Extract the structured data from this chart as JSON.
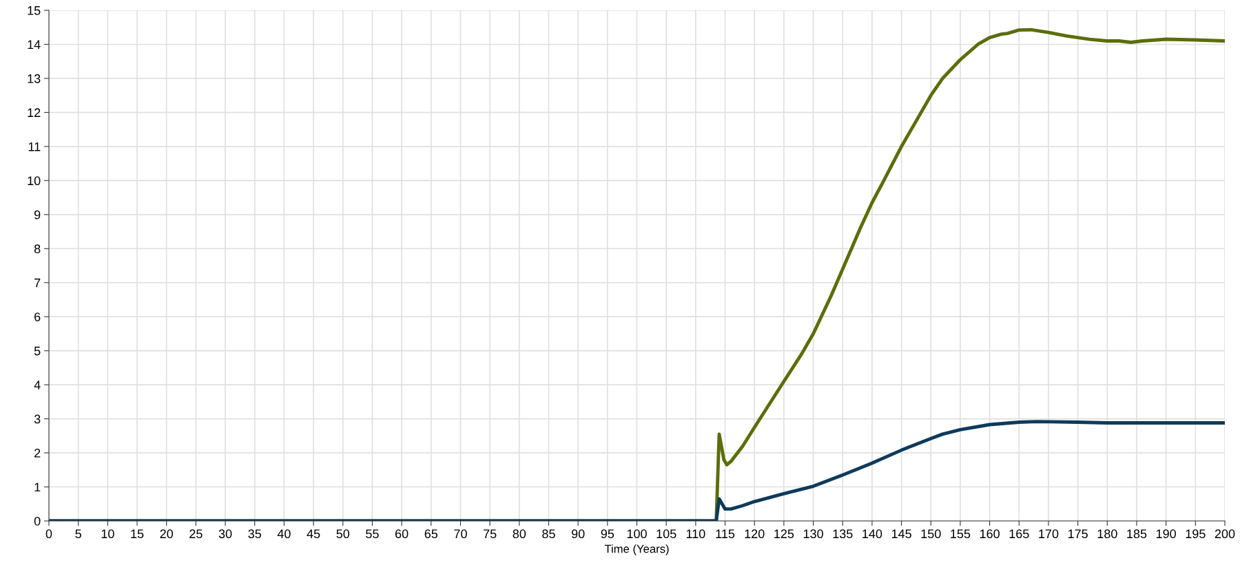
{
  "chart_data": {
    "type": "line",
    "xlabel": "Time (Years)",
    "xlim": [
      0,
      200
    ],
    "xticks": [
      0,
      5,
      10,
      15,
      20,
      25,
      30,
      35,
      40,
      45,
      50,
      55,
      60,
      65,
      70,
      75,
      80,
      85,
      90,
      95,
      100,
      105,
      110,
      115,
      120,
      125,
      130,
      135,
      140,
      145,
      150,
      155,
      160,
      165,
      170,
      175,
      180,
      185,
      190,
      195,
      200
    ],
    "ylim": [
      0,
      15
    ],
    "yticks": [
      0,
      1,
      2,
      3,
      4,
      5,
      6,
      7,
      8,
      9,
      10,
      11,
      12,
      13,
      14,
      15
    ],
    "grid": true,
    "legend": false,
    "marker": "none",
    "line_style": "solid",
    "series": [
      {
        "color": "#5a6e0a",
        "x": [
          0,
          113.5,
          114,
          114.8,
          115.3,
          116,
          118,
          120,
          125,
          128,
          130,
          133,
          135,
          138,
          140,
          142,
          145,
          148,
          150,
          152,
          155,
          158,
          160,
          162,
          163,
          165,
          167,
          170,
          173,
          177,
          180,
          182,
          184,
          186,
          190,
          195,
          200
        ],
        "values": [
          0,
          0,
          2.55,
          1.8,
          1.65,
          1.75,
          2.2,
          2.75,
          4.1,
          4.9,
          5.5,
          6.6,
          7.4,
          8.6,
          9.35,
          10.0,
          11.0,
          11.9,
          12.5,
          13.0,
          13.55,
          14.0,
          14.2,
          14.3,
          14.32,
          14.42,
          14.43,
          14.35,
          14.25,
          14.15,
          14.1,
          14.1,
          14.06,
          14.1,
          14.15,
          14.13,
          14.1
        ]
      },
      {
        "color": "#0d3a5c",
        "x": [
          0,
          113.5,
          114,
          115,
          116,
          118,
          120,
          125,
          130,
          135,
          140,
          145,
          150,
          152,
          155,
          160,
          165,
          168,
          175,
          180,
          185,
          200
        ],
        "values": [
          0,
          0,
          0.65,
          0.35,
          0.35,
          0.45,
          0.57,
          0.8,
          1.02,
          1.35,
          1.7,
          2.08,
          2.42,
          2.55,
          2.68,
          2.83,
          2.9,
          2.92,
          2.9,
          2.88,
          2.88,
          2.88
        ]
      }
    ]
  }
}
